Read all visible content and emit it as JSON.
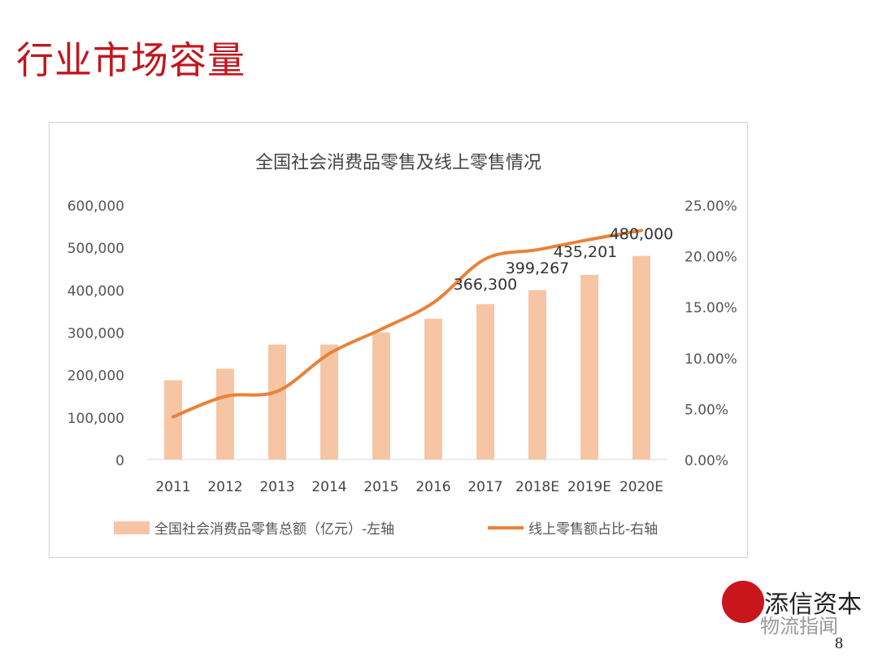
{
  "slide": {
    "title": "行业市场容量",
    "brand": "添信资本",
    "watermark": "物流指闻",
    "page_number": "8"
  },
  "chart_data": {
    "type": "bar+line",
    "title": "全国社会消费品零售及线上零售情况",
    "categories": [
      "2011",
      "2012",
      "2013",
      "2014",
      "2015",
      "2016",
      "2017",
      "2018E",
      "2019E",
      "2020E"
    ],
    "series": [
      {
        "name": "全国社会消费品零售总额（亿元）-左轴",
        "type": "bar",
        "axis": "left",
        "color": "#f6c6a4",
        "values": [
          187000,
          214000,
          271000,
          271000,
          300000,
          332000,
          366300,
          399267,
          435201,
          480000
        ],
        "data_labels": {
          "6": "366,300",
          "7": "399,267",
          "8": "435,201",
          "9": "480,000"
        }
      },
      {
        "name": "线上零售额占比-右轴",
        "type": "line",
        "axis": "right",
        "color": "#e8823a",
        "values": [
          4.2,
          6.2,
          6.7,
          10.4,
          12.8,
          15.4,
          19.7,
          20.6,
          21.6,
          22.5
        ]
      }
    ],
    "left_axis": {
      "ylim": [
        0,
        600000
      ],
      "ticks": [
        "0",
        "100,000",
        "200,000",
        "300,000",
        "400,000",
        "500,000",
        "600,000"
      ]
    },
    "right_axis": {
      "ylim": [
        0,
        25
      ],
      "ticks": [
        "0.00%",
        "5.00%",
        "10.00%",
        "15.00%",
        "20.00%",
        "25.00%"
      ]
    },
    "grid": false,
    "legend": "bottom"
  }
}
